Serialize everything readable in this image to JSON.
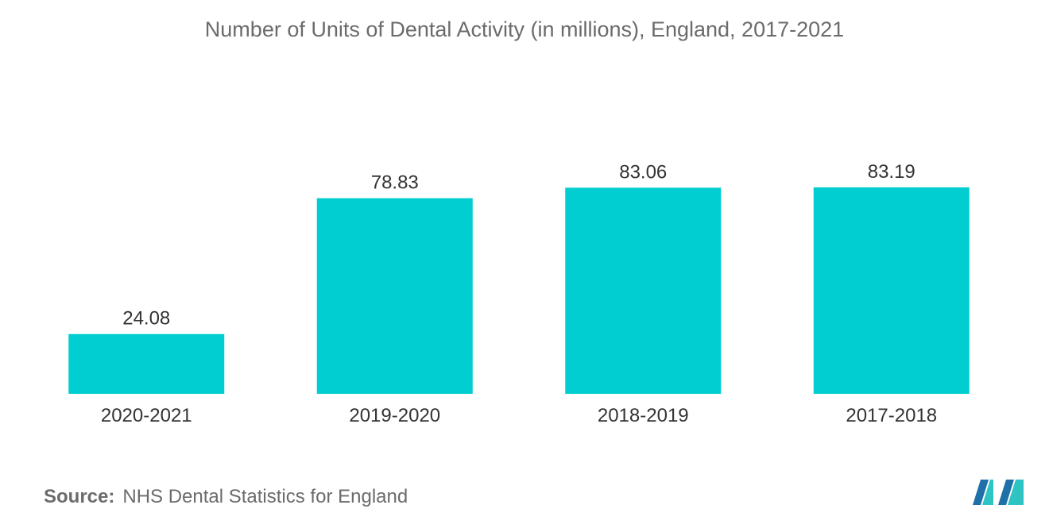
{
  "chart_data": {
    "type": "bar",
    "title": "Number of Units of Dental Activity  (in millions), England, 2017-2021",
    "categories": [
      "2020-2021",
      "2019-2020",
      "2018-2019",
      "2017-2018"
    ],
    "values": [
      24.08,
      78.83,
      83.06,
      83.19
    ],
    "data_labels": [
      "24.08",
      "78.83",
      "83.06",
      "83.19"
    ],
    "xlabel": "",
    "ylabel": "",
    "ylim": [
      0,
      83.19
    ],
    "grid": false,
    "legend": "none",
    "bar_color": "#00CED1"
  },
  "source": {
    "label": "Source:",
    "text": "NHS Dental Statistics for England"
  },
  "logo": {
    "icon": "mordor-intelligence-logo-icon",
    "colors": [
      "#1f6fa8",
      "#2ec4c4"
    ]
  }
}
